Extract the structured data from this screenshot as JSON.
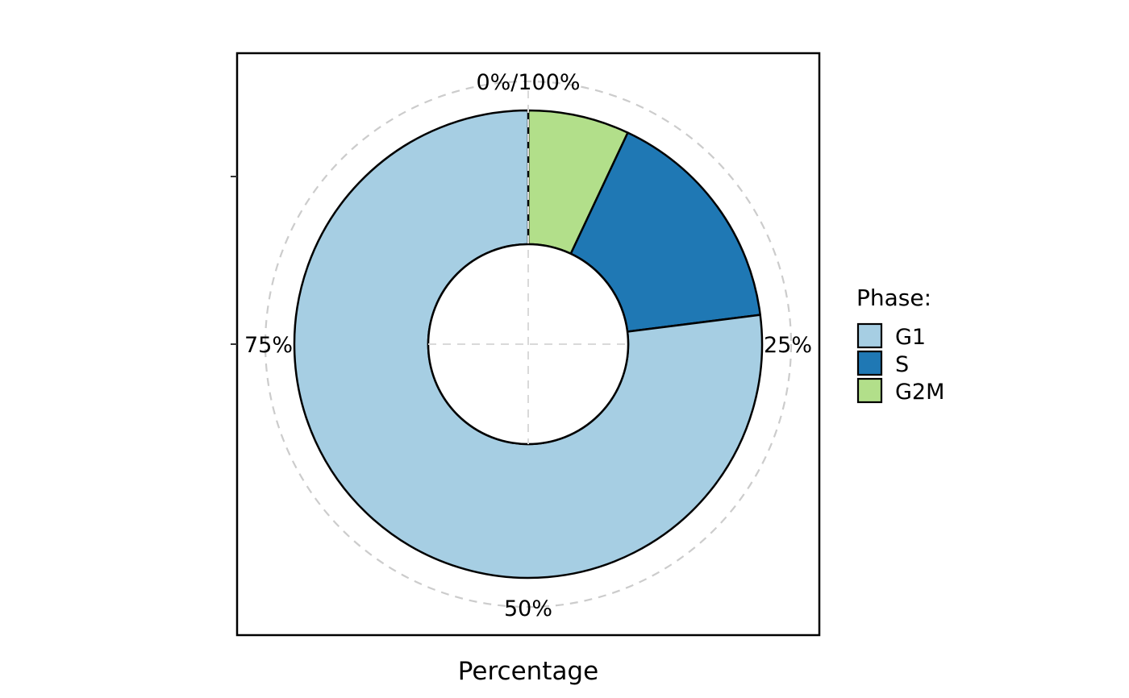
{
  "chart_data": {
    "type": "pie",
    "variant": "donut",
    "categories": [
      "G1",
      "S",
      "G2M"
    ],
    "values": [
      77,
      16,
      7
    ],
    "unit": "%",
    "colors": {
      "G1": "#a6cee3",
      "S": "#1f78b4",
      "G2M": "#b2df8a"
    },
    "xlabel": "Percentage",
    "tick_labels": [
      "0%/100%",
      "25%",
      "50%",
      "75%"
    ],
    "legend": {
      "title": "Phase:",
      "position": "right",
      "entries": [
        "G1",
        "S",
        "G2M"
      ]
    },
    "grid": true,
    "segment_border_color": "#000000"
  }
}
